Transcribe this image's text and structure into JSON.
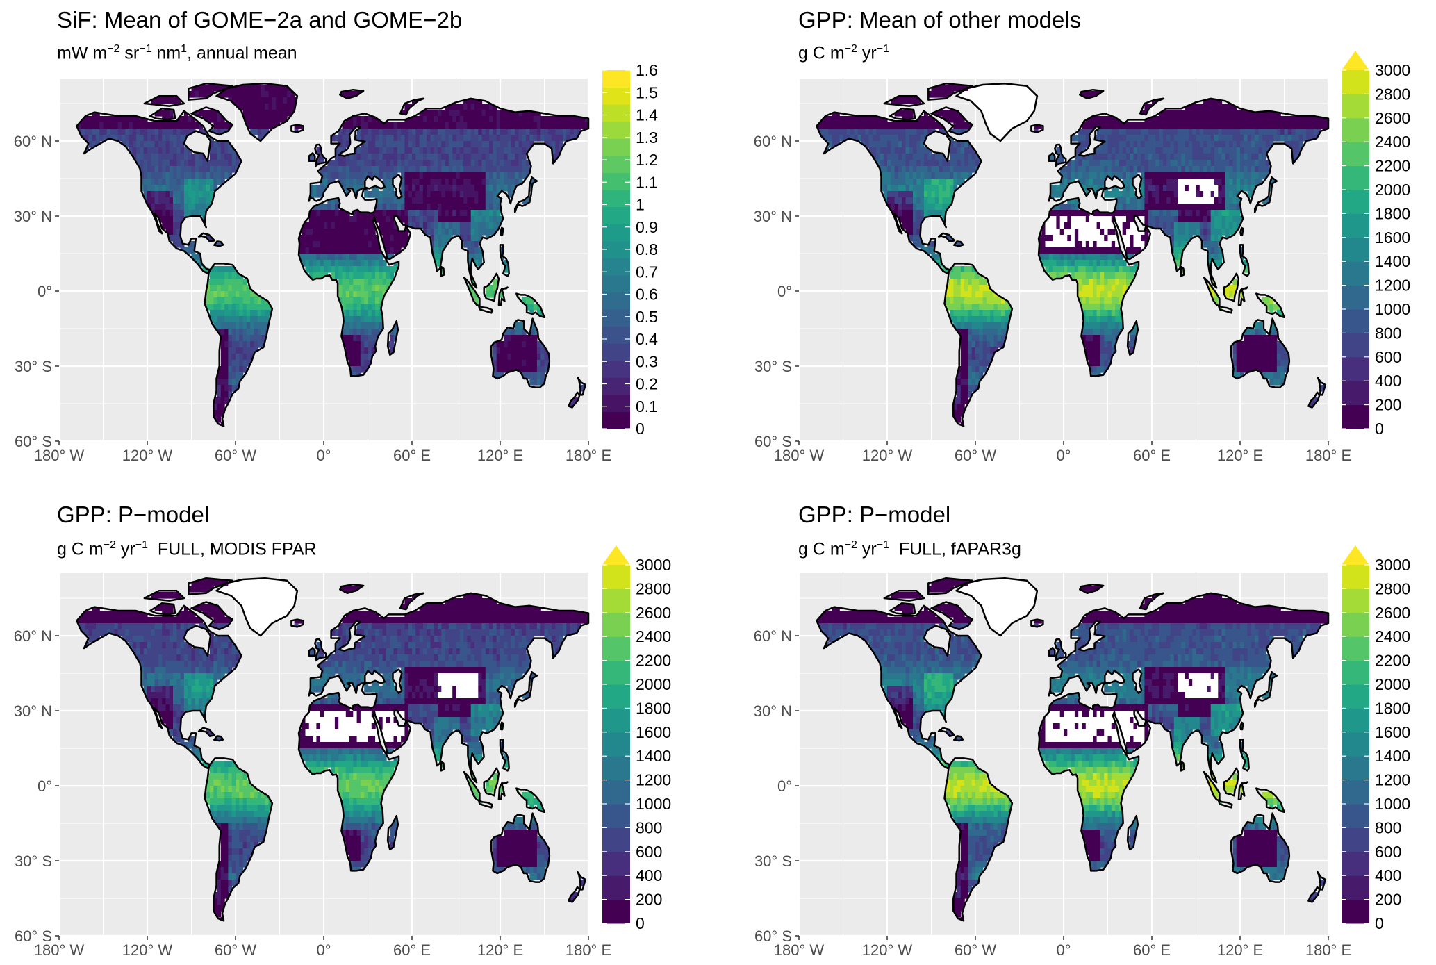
{
  "colors": {
    "panel_background": "#ebebeb",
    "gridline": "#ffffff",
    "coastline": "#000000",
    "desert_nodata": "#ffffff"
  },
  "panels": [
    {
      "id": "sif",
      "title": "SiF: Mean of GOME−2a and GOME−2b",
      "subtitle_parts": [
        "mW m",
        "−2",
        " sr",
        "−1",
        " nm",
        "1",
        ", annual mean"
      ],
      "legend": {
        "labels": [
          "1.6",
          "1.5",
          "1.4",
          "1.3",
          "1.2",
          "1.1",
          "1",
          "0.9",
          "0.8",
          "0.7",
          "0.6",
          "0.5",
          "0.4",
          "0.3",
          "0.2",
          "0.1",
          "0"
        ],
        "colors": [
          "#440154",
          "#471365",
          "#482475",
          "#463480",
          "#414487",
          "#3b528b",
          "#355f8d",
          "#2f6c8e",
          "#2a788e",
          "#25848e",
          "#21918c",
          "#1e9c89",
          "#22a884",
          "#2fb47c",
          "#44bf70",
          "#5ec962",
          "#7ad151",
          "#9bd93c",
          "#bddf26",
          "#dfe318",
          "#fde725"
        ],
        "overflow_arrow": false
      },
      "land_color_scheme": "sif",
      "white_desert": false
    },
    {
      "id": "gpp-mean",
      "title": "GPP: Mean of other models",
      "subtitle_parts": [
        "g C m",
        "−2",
        " yr",
        "−1",
        "",
        "",
        ""
      ],
      "legend": {
        "labels": [
          "3000",
          "2800",
          "2600",
          "2400",
          "2200",
          "2000",
          "1800",
          "1600",
          "1400",
          "1200",
          "1000",
          "800",
          "600",
          "400",
          "200",
          "0"
        ],
        "overflow_arrow": true
      },
      "land_color_scheme": "gpp_high",
      "white_desert": true
    },
    {
      "id": "pmodel-modis",
      "title": "GPP: P−model",
      "subtitle_parts": [
        "g C m",
        "−2",
        " yr",
        "−1",
        "  FULL, MODIS FPAR",
        "",
        ""
      ],
      "legend": {
        "labels": [
          "3000",
          "2800",
          "2600",
          "2400",
          "2200",
          "2000",
          "1800",
          "1600",
          "1400",
          "1200",
          "1000",
          "800",
          "600",
          "400",
          "200",
          "0"
        ],
        "overflow_arrow": true
      },
      "land_color_scheme": "gpp_mid",
      "white_desert": true
    },
    {
      "id": "pmodel-fapar",
      "title": "GPP: P−model",
      "subtitle_parts": [
        "g C m",
        "−2",
        " yr",
        "−1",
        "  FULL, fAPAR3g",
        "",
        ""
      ],
      "legend": {
        "labels": [
          "3000",
          "2800",
          "2600",
          "2400",
          "2200",
          "2000",
          "1800",
          "1600",
          "1400",
          "1200",
          "1000",
          "800",
          "600",
          "400",
          "200",
          "0"
        ],
        "overflow_arrow": true
      },
      "land_color_scheme": "gpp_high",
      "white_desert": true
    }
  ],
  "axes": {
    "x_ticks": [
      "180° W",
      "120° W",
      "60° W",
      "0°",
      "60° E",
      "120° E",
      "180° E"
    ],
    "y_ticks": [
      "60° N",
      "30° N",
      "0°",
      "30° S",
      "60° S"
    ]
  },
  "gpp_palette": [
    "#440154",
    "#481a6c",
    "#472f7d",
    "#414487",
    "#39568c",
    "#31688e",
    "#2a788e",
    "#23888e",
    "#1f988b",
    "#22a884",
    "#35b779",
    "#54c568",
    "#7ad151",
    "#a5db36",
    "#d2e21b",
    "#fde725"
  ]
}
